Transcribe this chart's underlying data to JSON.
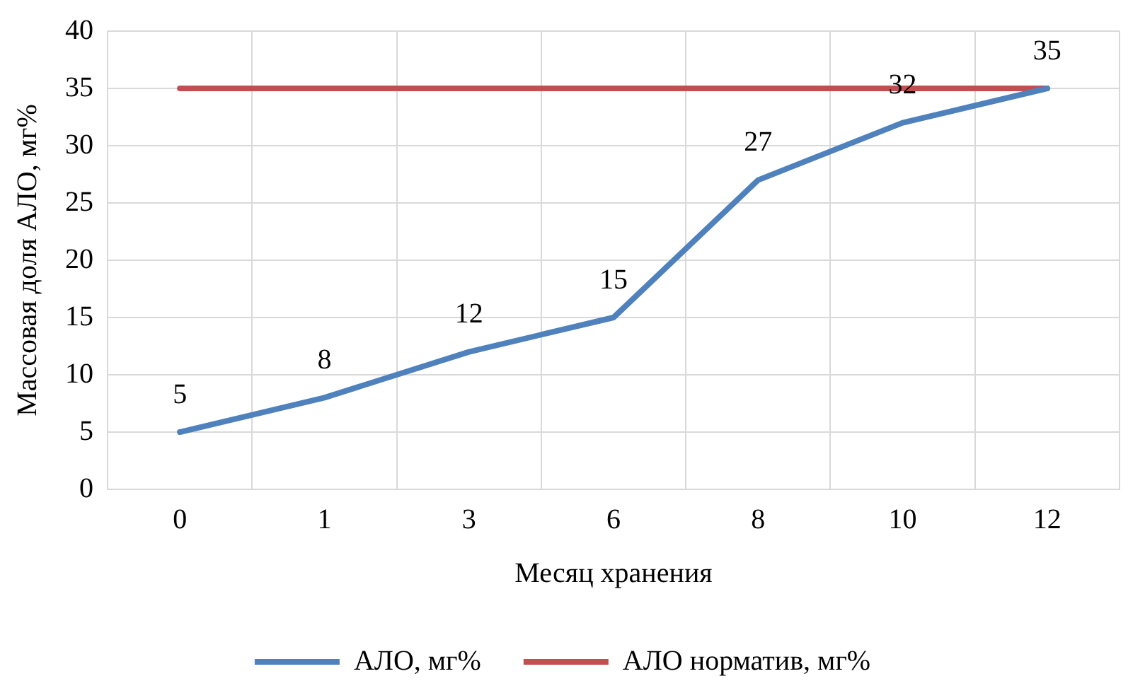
{
  "chart_data": {
    "type": "line",
    "xlabel": "Месяц хранения",
    "ylabel": "Массовая доля АЛО, мг%",
    "categories": [
      "0",
      "1",
      "3",
      "6",
      "8",
      "10",
      "12"
    ],
    "series": [
      {
        "name": "АЛО, мг%",
        "color": "#4f81bd",
        "values": [
          5,
          8,
          12,
          15,
          27,
          32,
          35
        ],
        "value_labels": [
          "5",
          "8",
          "12",
          "15",
          "27",
          "32",
          "35"
        ]
      },
      {
        "name": "АЛО норматив, мг%",
        "color": "#c0504d",
        "values": [
          35,
          35,
          35,
          35,
          35,
          35,
          35
        ]
      }
    ],
    "ylim": [
      0,
      40
    ],
    "yticks": [
      0,
      5,
      10,
      15,
      20,
      25,
      30,
      35,
      40
    ],
    "grid": true,
    "legend": "bottom",
    "marker": "none",
    "line_style": "solid"
  }
}
